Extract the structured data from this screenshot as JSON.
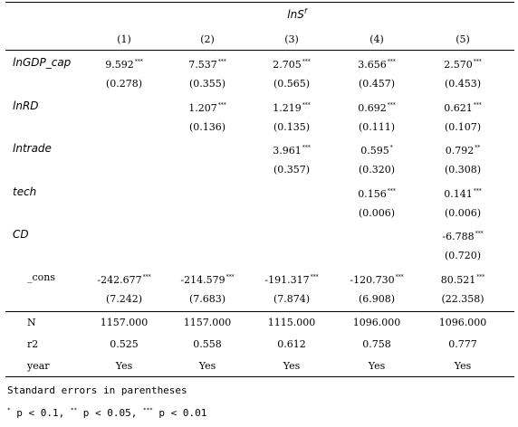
{
  "title": {
    "base": "lnS",
    "sup": "f"
  },
  "columns": [
    "(1)",
    "(2)",
    "(3)",
    "(4)",
    "(5)"
  ],
  "rows": [
    {
      "label": "lnGDP_cap",
      "italic": true,
      "coef": [
        [
          "9.592",
          "***"
        ],
        [
          "7.537",
          "***"
        ],
        [
          "2.705",
          "***"
        ],
        [
          "3.656",
          "***"
        ],
        [
          "2.570",
          "***"
        ]
      ],
      "se": [
        "(0.278)",
        "(0.355)",
        "(0.565)",
        "(0.457)",
        "(0.453)"
      ]
    },
    {
      "label": "lnRD",
      "italic": true,
      "coef": [
        [
          "",
          ""
        ],
        [
          "1.207",
          "***"
        ],
        [
          "1.219",
          "***"
        ],
        [
          "0.692",
          "***"
        ],
        [
          "0.621",
          "***"
        ]
      ],
      "se": [
        "",
        "(0.136)",
        "(0.135)",
        "(0.111)",
        "(0.107)"
      ]
    },
    {
      "label": "lntrade",
      "italic": true,
      "coef": [
        [
          "",
          ""
        ],
        [
          "",
          ""
        ],
        [
          "3.961",
          "***"
        ],
        [
          "0.595",
          "*"
        ],
        [
          "0.792",
          "**"
        ]
      ],
      "se": [
        "",
        "",
        "(0.357)",
        "(0.320)",
        "(0.308)"
      ]
    },
    {
      "label": "tech",
      "italic": true,
      "coef": [
        [
          "",
          ""
        ],
        [
          "",
          ""
        ],
        [
          "",
          ""
        ],
        [
          "0.156",
          "***"
        ],
        [
          "0.141",
          "***"
        ]
      ],
      "se": [
        "",
        "",
        "",
        "(0.006)",
        "(0.006)"
      ]
    },
    {
      "label": "CD",
      "italic": true,
      "coef": [
        [
          "",
          ""
        ],
        [
          "",
          ""
        ],
        [
          "",
          ""
        ],
        [
          "",
          ""
        ],
        [
          "-6.788",
          "***"
        ]
      ],
      "se": [
        "",
        "",
        "",
        "",
        "(0.720)"
      ]
    },
    {
      "label": "_cons",
      "italic": false,
      "coef": [
        [
          "-242.677",
          "***"
        ],
        [
          "-214.579",
          "***"
        ],
        [
          "-191.317",
          "***"
        ],
        [
          "-120.730",
          "***"
        ],
        [
          "80.521",
          "***"
        ]
      ],
      "se": [
        "(7.242)",
        "(7.683)",
        "(7.874)",
        "(6.908)",
        "(22.358)"
      ]
    }
  ],
  "stats": [
    {
      "label": "N",
      "values": [
        "1157.000",
        "1157.000",
        "1115.000",
        "1096.000",
        "1096.000"
      ]
    },
    {
      "label": "r2",
      "values": [
        "0.525",
        "0.558",
        "0.612",
        "0.758",
        "0.777"
      ]
    },
    {
      "label": "year",
      "values": [
        "Yes",
        "Yes",
        "Yes",
        "Yes",
        "Yes"
      ]
    }
  ],
  "notes": {
    "se_note": "Standard errors in parentheses",
    "sig": [
      {
        "stars": "*",
        "text": "p < 0.1,"
      },
      {
        "stars": "**",
        "text": "p < 0.05,"
      },
      {
        "stars": "***",
        "text": "p < 0.01"
      }
    ]
  }
}
